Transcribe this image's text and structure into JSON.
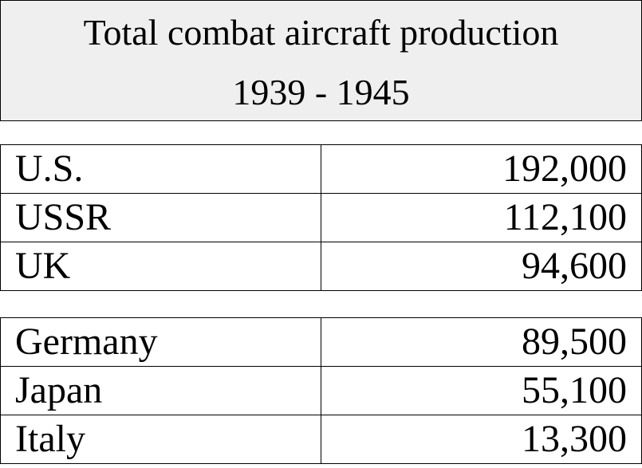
{
  "chart_data": {
    "type": "table",
    "title": "Total combat aircraft production",
    "subtitle": "1939 - 1945",
    "groups": [
      {
        "rows": [
          {
            "country": "U.S.",
            "value": 192000,
            "label": "192,000"
          },
          {
            "country": "USSR",
            "value": 112100,
            "label": "112,100"
          },
          {
            "country": "UK",
            "value": 94600,
            "label": "94,600"
          }
        ]
      },
      {
        "rows": [
          {
            "country": "Germany",
            "value": 89500,
            "label": "89,500"
          },
          {
            "country": "Japan",
            "value": 55100,
            "label": "55,100"
          },
          {
            "country": "Italy",
            "value": 13300,
            "label": "13,300"
          }
        ]
      }
    ],
    "colors": {
      "header_background": "#efefef",
      "border": "#000000"
    }
  }
}
